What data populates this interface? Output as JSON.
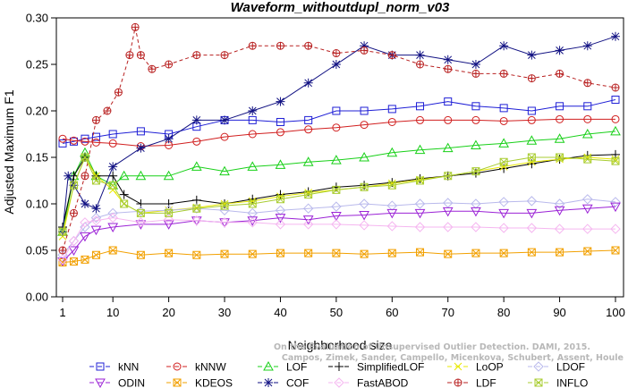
{
  "chart_data": {
    "type": "line",
    "title": "Waveform_withoutdupl_norm_v03",
    "xlabel": "Neighborhood size",
    "ylabel": "Adjusted Maximum F1",
    "xlim": [
      0,
      100
    ],
    "ylim": [
      0,
      0.3
    ],
    "xticks": [
      1,
      10,
      20,
      30,
      40,
      50,
      60,
      70,
      80,
      90,
      100
    ],
    "yticks": [
      "0.00",
      "0.05",
      "0.10",
      "0.15",
      "0.20",
      "0.25",
      "0.30"
    ],
    "grid": false,
    "legend_position": "bottom",
    "watermark": [
      "Campos, Zimek, Sander, Campello, Micenkova, Schubert, Assent, Houle",
      "On the Evaluation of Unsupervised Outlier Detection. DAMI, 2015."
    ],
    "series": [
      {
        "name": "kNN",
        "color": "#1f1fd6",
        "marker": "square",
        "k": [
          1,
          3,
          5,
          7,
          10,
          15,
          20,
          25,
          30,
          35,
          40,
          45,
          50,
          55,
          60,
          65,
          70,
          75,
          80,
          85,
          90,
          95,
          100
        ],
        "values": [
          0.165,
          0.167,
          0.17,
          0.172,
          0.175,
          0.178,
          0.175,
          0.183,
          0.19,
          0.19,
          0.188,
          0.19,
          0.2,
          0.2,
          0.202,
          0.205,
          0.21,
          0.205,
          0.203,
          0.2,
          0.205,
          0.205,
          0.212
        ]
      },
      {
        "name": "kNNW",
        "color": "#d11f1f",
        "marker": "circle",
        "k": [
          1,
          3,
          5,
          7,
          10,
          15,
          20,
          25,
          30,
          35,
          40,
          45,
          50,
          55,
          60,
          65,
          70,
          75,
          80,
          85,
          90,
          95,
          100
        ],
        "values": [
          0.17,
          0.168,
          0.167,
          0.166,
          0.165,
          0.162,
          0.163,
          0.167,
          0.172,
          0.175,
          0.177,
          0.18,
          0.182,
          0.185,
          0.188,
          0.19,
          0.19,
          0.19,
          0.189,
          0.19,
          0.191,
          0.191,
          0.191
        ]
      },
      {
        "name": "LOF",
        "color": "#18d018",
        "marker": "triangle-up",
        "k": [
          1,
          3,
          5,
          7,
          10,
          12,
          15,
          20,
          25,
          30,
          35,
          40,
          45,
          50,
          55,
          60,
          65,
          70,
          75,
          80,
          85,
          90,
          95,
          100
        ],
        "values": [
          0.07,
          0.13,
          0.155,
          0.13,
          0.12,
          0.13,
          0.13,
          0.13,
          0.14,
          0.135,
          0.14,
          0.142,
          0.145,
          0.147,
          0.15,
          0.155,
          0.158,
          0.16,
          0.163,
          0.165,
          0.168,
          0.17,
          0.175,
          0.178
        ]
      },
      {
        "name": "SimplifiedLOF",
        "color": "#000000",
        "marker": "plus",
        "k": [
          1,
          3,
          5,
          7,
          10,
          12,
          15,
          20,
          25,
          30,
          35,
          40,
          45,
          50,
          55,
          60,
          65,
          70,
          75,
          80,
          85,
          90,
          95,
          100
        ],
        "values": [
          0.075,
          0.13,
          0.15,
          0.13,
          0.13,
          0.11,
          0.1,
          0.1,
          0.104,
          0.1,
          0.105,
          0.11,
          0.113,
          0.118,
          0.12,
          0.123,
          0.127,
          0.13,
          0.133,
          0.138,
          0.143,
          0.148,
          0.152,
          0.153
        ]
      },
      {
        "name": "LoOP",
        "color": "#e8e800",
        "marker": "x",
        "k": [
          1,
          3,
          5,
          7,
          10,
          12,
          15,
          20,
          25,
          30,
          35,
          40,
          45,
          50,
          55,
          60,
          65,
          70,
          75,
          80,
          85,
          90,
          95,
          100
        ],
        "values": [
          0.065,
          0.12,
          0.15,
          0.13,
          0.115,
          0.1,
          0.09,
          0.093,
          0.096,
          0.1,
          0.103,
          0.108,
          0.112,
          0.115,
          0.118,
          0.122,
          0.126,
          0.13,
          0.135,
          0.14,
          0.145,
          0.148,
          0.15,
          0.148
        ]
      },
      {
        "name": "LDOF",
        "color": "#b9b9ec",
        "marker": "diamond",
        "k": [
          1,
          3,
          5,
          7,
          10,
          15,
          20,
          25,
          30,
          35,
          40,
          45,
          50,
          55,
          60,
          65,
          70,
          75,
          80,
          85,
          90,
          95,
          100
        ],
        "values": [
          0.045,
          0.06,
          0.075,
          0.085,
          0.09,
          0.092,
          0.093,
          0.095,
          0.093,
          0.09,
          0.093,
          0.095,
          0.097,
          0.1,
          0.098,
          0.1,
          0.101,
          0.1,
          0.102,
          0.103,
          0.1,
          0.105,
          0.102
        ]
      },
      {
        "name": "ODIN",
        "color": "#9b22d6",
        "marker": "triangle-down",
        "k": [
          1,
          3,
          5,
          7,
          10,
          15,
          20,
          25,
          30,
          35,
          40,
          45,
          50,
          55,
          60,
          65,
          70,
          75,
          80,
          85,
          90,
          95,
          100
        ],
        "values": [
          0.038,
          0.05,
          0.065,
          0.072,
          0.075,
          0.078,
          0.078,
          0.082,
          0.08,
          0.082,
          0.085,
          0.083,
          0.087,
          0.088,
          0.09,
          0.09,
          0.092,
          0.092,
          0.09,
          0.09,
          0.093,
          0.095,
          0.097
        ]
      },
      {
        "name": "KDEOS",
        "color": "#f2a000",
        "marker": "square-x",
        "k": [
          1,
          3,
          5,
          7,
          10,
          15,
          20,
          25,
          30,
          35,
          40,
          45,
          50,
          55,
          60,
          65,
          70,
          75,
          80,
          85,
          90,
          95,
          100
        ],
        "values": [
          0.037,
          0.038,
          0.04,
          0.045,
          0.05,
          0.045,
          0.047,
          0.045,
          0.046,
          0.046,
          0.047,
          0.047,
          0.047,
          0.046,
          0.047,
          0.048,
          0.046,
          0.047,
          0.047,
          0.048,
          0.048,
          0.049,
          0.05
        ]
      },
      {
        "name": "COF",
        "color": "#121283",
        "marker": "star",
        "k": [
          1,
          2,
          3,
          5,
          7,
          10,
          15,
          20,
          25,
          30,
          35,
          40,
          45,
          50,
          55,
          60,
          65,
          70,
          75,
          80,
          85,
          90,
          95,
          100
        ],
        "values": [
          0.07,
          0.13,
          0.12,
          0.1,
          0.095,
          0.14,
          0.16,
          0.17,
          0.19,
          0.19,
          0.2,
          0.21,
          0.23,
          0.25,
          0.27,
          0.26,
          0.26,
          0.255,
          0.25,
          0.27,
          0.26,
          0.265,
          0.27,
          0.28
        ]
      },
      {
        "name": "FastABOD",
        "color": "#f5b6f0",
        "marker": "diamond",
        "k": [
          1,
          3,
          5,
          7,
          10,
          15,
          20,
          25,
          30,
          35,
          40,
          45,
          50,
          55,
          60,
          65,
          70,
          75,
          80,
          85,
          90,
          95,
          100
        ],
        "values": [
          0.04,
          0.06,
          0.08,
          0.082,
          0.085,
          0.08,
          0.083,
          0.082,
          0.08,
          0.08,
          0.078,
          0.078,
          0.078,
          0.077,
          0.076,
          0.075,
          0.075,
          0.075,
          0.074,
          0.074,
          0.073,
          0.073,
          0.073
        ]
      },
      {
        "name": "LDF",
        "color": "#b82020",
        "marker": "circle-plus",
        "dashed": true,
        "k": [
          1,
          3,
          5,
          7,
          9,
          11,
          13,
          14,
          15,
          17,
          20,
          25,
          30,
          35,
          40,
          45,
          50,
          55,
          60,
          65,
          70,
          75,
          80,
          85,
          90,
          95,
          100
        ],
        "values": [
          0.05,
          0.09,
          0.13,
          0.19,
          0.2,
          0.22,
          0.26,
          0.29,
          0.26,
          0.245,
          0.25,
          0.26,
          0.26,
          0.27,
          0.27,
          0.27,
          0.262,
          0.265,
          0.26,
          0.25,
          0.245,
          0.24,
          0.24,
          0.235,
          0.24,
          0.23,
          0.225
        ]
      },
      {
        "name": "INFLO",
        "color": "#a8cc30",
        "marker": "square-x",
        "k": [
          1,
          3,
          5,
          7,
          10,
          12,
          15,
          20,
          25,
          30,
          35,
          40,
          45,
          50,
          55,
          60,
          65,
          70,
          75,
          80,
          85,
          90,
          95,
          100
        ],
        "values": [
          0.07,
          0.12,
          0.15,
          0.125,
          0.12,
          0.1,
          0.09,
          0.09,
          0.095,
          0.098,
          0.1,
          0.105,
          0.11,
          0.115,
          0.118,
          0.12,
          0.125,
          0.13,
          0.135,
          0.145,
          0.15,
          0.15,
          0.148,
          0.146
        ]
      }
    ]
  }
}
